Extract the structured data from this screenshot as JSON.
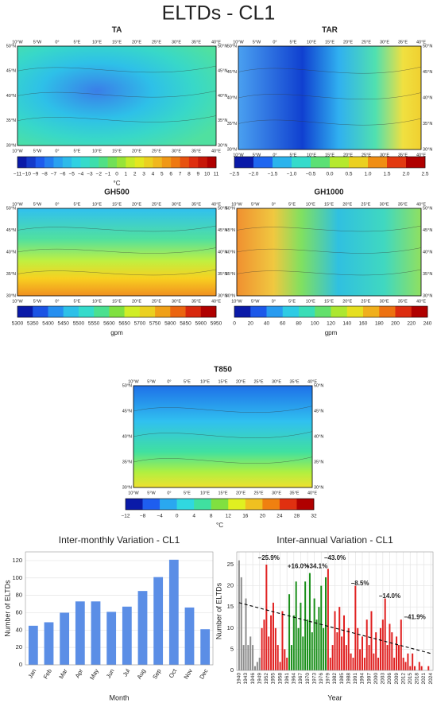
{
  "title": "ELTDs - CL1",
  "map_axes": {
    "lon": [
      "10°W",
      "5°W",
      "0°",
      "5°E",
      "10°E",
      "15°E",
      "20°E",
      "25°E",
      "30°E",
      "35°E",
      "40°E"
    ],
    "lat": [
      "30°N",
      "35°N",
      "40°N",
      "45°N",
      "50°N"
    ]
  },
  "maps": [
    {
      "title": "TA",
      "colorbar": [
        "−11",
        "−10",
        "−9",
        "−8",
        "−7",
        "−6",
        "−5",
        "−4",
        "−3",
        "−2",
        "−1",
        "0",
        "1",
        "2",
        "3",
        "4",
        "5",
        "6",
        "7",
        "8",
        "9",
        "10",
        "11"
      ],
      "unit": "°C"
    },
    {
      "title": "TAR",
      "colorbar": [
        "−2.5",
        "−2.0",
        "−1.5",
        "−1.0",
        "−0.5",
        "0.0",
        "0.5",
        "1.0",
        "1.5",
        "2.0",
        "2.5"
      ]
    },
    {
      "title": "GH500",
      "colorbar": [
        "5300",
        "5350",
        "5400",
        "5450",
        "5500",
        "5550",
        "5600",
        "5650",
        "5700",
        "5750",
        "5800",
        "5850",
        "5900",
        "5950"
      ],
      "unit": "gpm"
    },
    {
      "title": "GH1000",
      "colorbar": [
        "0",
        "20",
        "40",
        "60",
        "80",
        "100",
        "120",
        "140",
        "160",
        "180",
        "200",
        "220",
        "240"
      ],
      "unit": "gpm"
    },
    {
      "title": "T850",
      "colorbar": [
        "−12",
        "−8",
        "−4",
        "0",
        "4",
        "8",
        "12",
        "16",
        "20",
        "24",
        "28",
        "32"
      ],
      "unit": "°C"
    }
  ],
  "chart_data": [
    {
      "type": "bar",
      "title": "Inter-monthly Variation - CL1",
      "x_label": "Month",
      "y_label": "Number of ELTDs",
      "categories": [
        "Jan",
        "Feb",
        "Mar",
        "Apr",
        "May",
        "Jun",
        "Jul",
        "Aug",
        "Sep",
        "Oct",
        "Nov",
        "Dec"
      ],
      "values": [
        45,
        49,
        60,
        73,
        73,
        61,
        67,
        85,
        101,
        121,
        66,
        41
      ],
      "color": "#5b8ee6",
      "ylim": [
        0,
        130
      ],
      "yticks": [
        0,
        20,
        40,
        60,
        80,
        100,
        120
      ],
      "grid": true
    },
    {
      "type": "bar",
      "title": "Inter-annual Variation - CL1",
      "x_label": "Year",
      "y_label": "Number of ELTDs",
      "xlim": [
        1939,
        2025
      ],
      "xticks": [
        1940,
        1943,
        1946,
        1949,
        1952,
        1955,
        1958,
        1961,
        1964,
        1967,
        1970,
        1973,
        1976,
        1979,
        1982,
        1985,
        1988,
        1991,
        1994,
        1997,
        2000,
        2003,
        2006,
        2009,
        2012,
        2015,
        2018,
        2021,
        2024
      ],
      "ylim": [
        0,
        28
      ],
      "yticks": [
        0,
        5,
        10,
        15,
        20,
        25
      ],
      "grid": true,
      "series": [
        {
          "color": "#8c8c8c",
          "x": [
            1940,
            1941,
            1942,
            1943,
            1944,
            1945,
            1946,
            1947,
            1948,
            1949
          ],
          "values": [
            26,
            22,
            6,
            17,
            6,
            8,
            6,
            1,
            2,
            3
          ]
        },
        {
          "color": "#e02020",
          "x": [
            1950,
            1951,
            1952,
            1953,
            1954,
            1955,
            1956,
            1957,
            1958,
            1959,
            1960,
            1961
          ],
          "values": [
            10,
            12,
            25,
            8,
            13,
            16,
            10,
            6,
            2,
            14,
            5,
            3
          ]
        },
        {
          "color": "#1a8f1a",
          "x": [
            1962,
            1963,
            1964,
            1965,
            1966,
            1967,
            1968,
            1969,
            1970,
            1971,
            1972,
            1973,
            1974,
            1975,
            1976,
            1977,
            1978
          ],
          "values": [
            18,
            6,
            13,
            21,
            10,
            16,
            8,
            21,
            12,
            23,
            9,
            17,
            12,
            15,
            20,
            10,
            22
          ]
        },
        {
          "color": "#e02020",
          "x": [
            1979,
            1980,
            1981,
            1982,
            1983,
            1984,
            1985,
            1986,
            1987,
            1988,
            1989,
            1990,
            1991,
            1992,
            1993,
            1994,
            1995,
            1996,
            1997,
            1998,
            1999,
            2000,
            2001,
            2002,
            2003,
            2004,
            2005,
            2006,
            2007,
            2008,
            2009,
            2010,
            2011,
            2012,
            2013,
            2014,
            2015,
            2016,
            2017,
            2018,
            2019,
            2020,
            2021,
            2022,
            2023,
            2024
          ],
          "values": [
            24,
            3,
            6,
            14,
            9,
            15,
            8,
            13,
            6,
            10,
            4,
            3,
            20,
            10,
            5,
            8,
            3,
            12,
            6,
            14,
            4,
            9,
            3,
            10,
            12,
            17,
            6,
            11,
            9,
            3,
            8,
            6,
            12,
            3,
            2,
            4,
            1,
            4,
            1,
            0,
            2,
            1,
            0,
            0,
            1,
            0
          ]
        }
      ],
      "trend": {
        "x": [
          1940,
          2024
        ],
        "values": [
          16,
          4
        ]
      },
      "annotations": [
        {
          "text": "−25.9%",
          "color": "#e02020"
        },
        {
          "text": "+16.0%",
          "color": "#1a8f1a"
        },
        {
          "text": "+34.1%",
          "color": "#1a8f1a"
        },
        {
          "text": "−43.0%",
          "color": "#e02020"
        },
        {
          "text": "−8.5%",
          "color": "#e02020"
        },
        {
          "text": "−14.0%",
          "color": "#e02020"
        },
        {
          "text": "−41.9%",
          "color": "#e02020"
        }
      ]
    }
  ]
}
